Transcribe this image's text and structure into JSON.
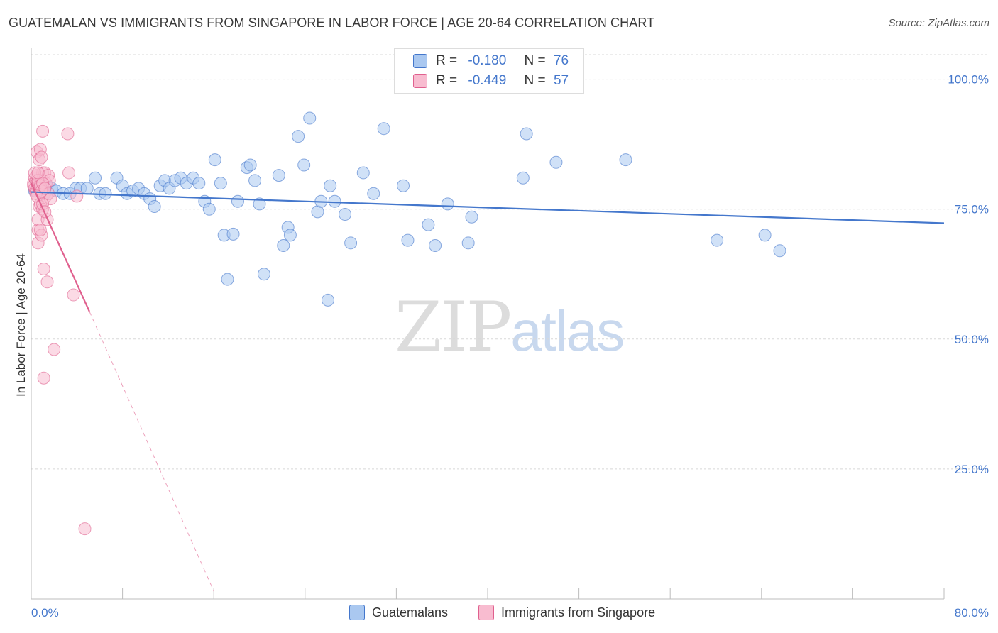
{
  "title": "GUATEMALAN VS IMMIGRANTS FROM SINGAPORE IN LABOR FORCE | AGE 20-64 CORRELATION CHART",
  "source": "Source: ZipAtlas.com",
  "watermark": {
    "zip": "ZIP",
    "atlas": "atlas"
  },
  "legend": {
    "r_label": "R =",
    "n_label": "N =",
    "rows": [
      {
        "r": "-0.180",
        "n": "76",
        "color": "#aac8f0"
      },
      {
        "r": "-0.449",
        "n": "57",
        "color": "#f8bcd0"
      }
    ]
  },
  "bottom_legend": [
    {
      "label": "Guatemalans",
      "color": "#aac8f0"
    },
    {
      "label": "Immigrants from Singapore",
      "color": "#f8bcd0"
    }
  ],
  "colors": {
    "blue": "#4477cc",
    "pink": "#e0608e",
    "blue_fill": "#aac8f0",
    "pink_fill": "#f8bcd0"
  },
  "chart_data": {
    "type": "scatter",
    "title": "GUATEMALAN VS IMMIGRANTS FROM SINGAPORE IN LABOR FORCE | AGE 20-64 CORRELATION CHART",
    "xlabel": "",
    "ylabel": "In Labor Force | Age 20-64",
    "xlim": [
      0,
      80
    ],
    "ylim": [
      0,
      105
    ],
    "x_tick_labels": [
      "0.0%",
      "80.0%"
    ],
    "y_ticks": [
      25,
      50,
      75,
      100
    ],
    "y_tick_labels": [
      "25.0%",
      "50.0%",
      "75.0%",
      "100.0%"
    ],
    "grid": true,
    "series": [
      {
        "name": "Guatemalans",
        "color": "#4477cc",
        "trend": {
          "x": [
            0,
            80
          ],
          "y": [
            78.3,
            72.3
          ],
          "dashed_from": null
        },
        "points": [
          [
            0.3,
            78.5
          ],
          [
            0.7,
            79.0
          ],
          [
            1.0,
            79.0
          ],
          [
            1.2,
            78.0
          ],
          [
            1.4,
            79.5
          ],
          [
            1.8,
            79.0
          ],
          [
            2.2,
            78.5
          ],
          [
            2.8,
            78.0
          ],
          [
            3.4,
            78.0
          ],
          [
            3.9,
            79.0
          ],
          [
            4.3,
            79.0
          ],
          [
            4.9,
            79.0
          ],
          [
            5.6,
            81.0
          ],
          [
            6.0,
            78.0
          ],
          [
            6.5,
            78.0
          ],
          [
            7.5,
            81.0
          ],
          [
            8.0,
            79.5
          ],
          [
            8.4,
            78.0
          ],
          [
            8.9,
            78.5
          ],
          [
            9.4,
            79.0
          ],
          [
            9.9,
            78.0
          ],
          [
            10.4,
            77.0
          ],
          [
            10.8,
            75.5
          ],
          [
            11.3,
            79.5
          ],
          [
            11.7,
            80.5
          ],
          [
            12.1,
            79.0
          ],
          [
            12.6,
            80.5
          ],
          [
            13.1,
            81.0
          ],
          [
            13.6,
            80.0
          ],
          [
            14.2,
            81.0
          ],
          [
            14.7,
            80.0
          ],
          [
            15.2,
            76.5
          ],
          [
            15.6,
            75.0
          ],
          [
            16.1,
            84.5
          ],
          [
            16.6,
            80.0
          ],
          [
            16.9,
            70.0
          ],
          [
            17.2,
            61.5
          ],
          [
            17.7,
            70.2
          ],
          [
            18.1,
            76.5
          ],
          [
            18.9,
            83.0
          ],
          [
            19.2,
            83.5
          ],
          [
            19.6,
            80.5
          ],
          [
            20.0,
            76.0
          ],
          [
            20.4,
            62.5
          ],
          [
            21.7,
            81.5
          ],
          [
            22.1,
            68.0
          ],
          [
            22.5,
            71.5
          ],
          [
            22.7,
            70.0
          ],
          [
            23.4,
            89.0
          ],
          [
            23.9,
            83.5
          ],
          [
            24.4,
            92.5
          ],
          [
            25.1,
            74.5
          ],
          [
            25.4,
            76.5
          ],
          [
            26.0,
            57.5
          ],
          [
            26.2,
            79.5
          ],
          [
            26.6,
            76.5
          ],
          [
            27.5,
            74.0
          ],
          [
            28.0,
            68.5
          ],
          [
            29.1,
            82.0
          ],
          [
            30.0,
            78.0
          ],
          [
            30.9,
            90.5
          ],
          [
            32.6,
            79.5
          ],
          [
            33.0,
            69.0
          ],
          [
            34.8,
            72.0
          ],
          [
            35.4,
            68.0
          ],
          [
            36.5,
            76.0
          ],
          [
            38.3,
            68.5
          ],
          [
            38.6,
            73.5
          ],
          [
            43.1,
            81.0
          ],
          [
            43.4,
            89.5
          ],
          [
            46.0,
            84.0
          ],
          [
            52.1,
            84.5
          ],
          [
            60.1,
            69.0
          ],
          [
            64.3,
            70.0
          ],
          [
            65.6,
            67.0
          ]
        ]
      },
      {
        "name": "Immigrants from Singapore",
        "color": "#e0608e",
        "trend": {
          "x": [
            0,
            5.1,
            16.0
          ],
          "y": [
            80.0,
            55.3,
            1.5
          ],
          "dashed_from": 5.1
        },
        "points": [
          [
            0.2,
            80.0
          ],
          [
            0.2,
            79.5
          ],
          [
            0.3,
            81.0
          ],
          [
            0.3,
            79.0
          ],
          [
            0.4,
            80.5
          ],
          [
            0.4,
            78.5
          ],
          [
            0.5,
            79.5
          ],
          [
            0.5,
            80.0
          ],
          [
            0.5,
            86.0
          ],
          [
            0.5,
            81.5
          ],
          [
            0.6,
            73.0
          ],
          [
            0.6,
            68.5
          ],
          [
            0.6,
            71.0
          ],
          [
            0.6,
            80.0
          ],
          [
            0.7,
            79.5
          ],
          [
            0.7,
            75.5
          ],
          [
            0.7,
            84.5
          ],
          [
            0.8,
            86.5
          ],
          [
            0.8,
            79.0
          ],
          [
            0.8,
            76.0
          ],
          [
            0.9,
            70.0
          ],
          [
            0.9,
            80.5
          ],
          [
            0.9,
            85.0
          ],
          [
            1.0,
            90.0
          ],
          [
            1.0,
            82.0
          ],
          [
            1.0,
            75.0
          ],
          [
            1.1,
            78.0
          ],
          [
            1.1,
            63.5
          ],
          [
            1.1,
            42.5
          ],
          [
            1.2,
            82.0
          ],
          [
            1.3,
            80.0
          ],
          [
            1.3,
            77.5
          ],
          [
            1.4,
            61.0
          ],
          [
            1.4,
            73.0
          ],
          [
            1.5,
            78.0
          ],
          [
            1.5,
            81.5
          ],
          [
            1.6,
            80.5
          ],
          [
            1.7,
            77.0
          ],
          [
            2.0,
            48.0
          ],
          [
            3.2,
            89.5
          ],
          [
            3.3,
            82.0
          ],
          [
            3.7,
            58.5
          ],
          [
            4.0,
            77.5
          ],
          [
            4.7,
            13.5
          ],
          [
            0.3,
            82.0
          ],
          [
            0.4,
            78.0
          ],
          [
            0.6,
            80.5
          ],
          [
            0.7,
            79.0
          ],
          [
            0.8,
            79.5
          ],
          [
            0.9,
            78.5
          ],
          [
            1.0,
            80.0
          ],
          [
            1.2,
            79.0
          ],
          [
            0.5,
            77.5
          ],
          [
            0.6,
            82.0
          ],
          [
            0.8,
            71.0
          ],
          [
            1.0,
            76.0
          ],
          [
            1.2,
            74.5
          ]
        ]
      }
    ]
  }
}
